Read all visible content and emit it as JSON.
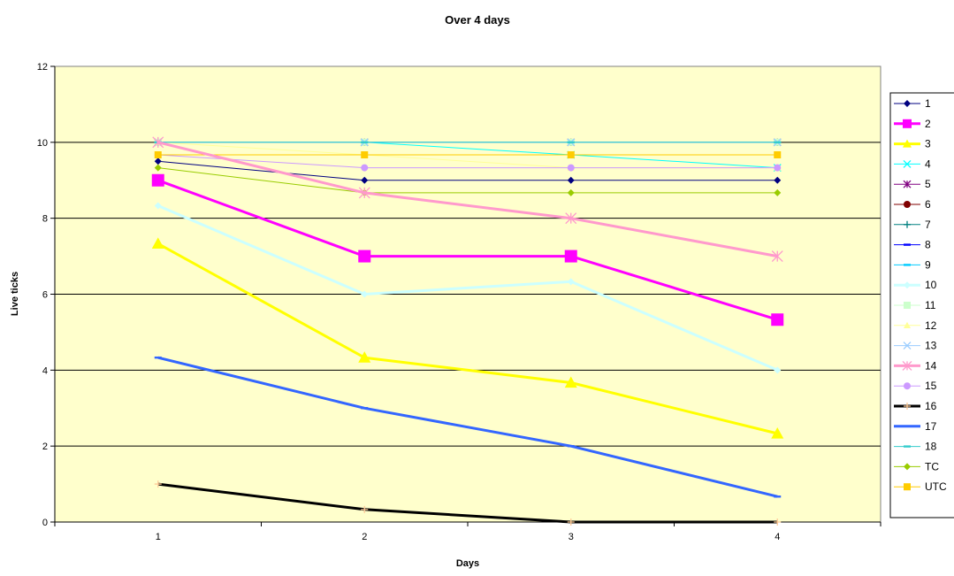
{
  "chart_data": {
    "type": "line",
    "title": "Over 4 days",
    "xlabel": "Days",
    "ylabel": "Live ticks",
    "x": [
      1,
      2,
      3,
      4
    ],
    "x_tick_labels": [
      "1",
      "2",
      "3",
      "4"
    ],
    "ylim": [
      0,
      12
    ],
    "y_ticks": [
      0,
      2,
      4,
      6,
      8,
      10,
      12
    ],
    "y_tick_labels": [
      "0",
      "2",
      "4",
      "6",
      "8",
      "10",
      "12"
    ],
    "grid": "horizontal",
    "legend_position": "right",
    "plot_background": "#FFFFCC",
    "series": [
      {
        "name": "1",
        "values": [
          9.5,
          9,
          9,
          9
        ],
        "color": "#000080",
        "marker": "diamond",
        "width": 1
      },
      {
        "name": "2",
        "values": [
          9,
          7,
          7,
          5.33
        ],
        "color": "#FF00FF",
        "marker": "square",
        "width": 3
      },
      {
        "name": "3",
        "values": [
          7.33,
          4.33,
          3.67,
          2.33
        ],
        "color": "#FFFF00",
        "marker": "triangle",
        "width": 3
      },
      {
        "name": "4",
        "values": [
          10,
          10,
          9.67,
          9.33
        ],
        "color": "#00FFFF",
        "marker": "x",
        "width": 1
      },
      {
        "name": "5",
        "values": [
          10,
          10,
          10,
          10
        ],
        "color": "#800080",
        "marker": "star",
        "width": 1
      },
      {
        "name": "6",
        "values": [
          10,
          10,
          10,
          10
        ],
        "color": "#800000",
        "marker": "circle",
        "width": 1
      },
      {
        "name": "7",
        "values": [
          10,
          10,
          10,
          10
        ],
        "color": "#008080",
        "marker": "plus",
        "width": 1
      },
      {
        "name": "8",
        "values": [
          10,
          10,
          10,
          10
        ],
        "color": "#0000FF",
        "marker": "dash",
        "width": 1
      },
      {
        "name": "9",
        "values": [
          10,
          10,
          10,
          10
        ],
        "color": "#00CCFF",
        "marker": "dash",
        "width": 1
      },
      {
        "name": "10",
        "values": [
          8.33,
          6,
          6.33,
          4
        ],
        "color": "#CCFFFF",
        "marker": "diamond",
        "width": 3
      },
      {
        "name": "11",
        "values": [
          10,
          10,
          10,
          10
        ],
        "color": "#CCFFCC",
        "marker": "square",
        "width": 1
      },
      {
        "name": "12",
        "values": [
          10,
          9.67,
          9.33,
          9.33
        ],
        "color": "#FFFF99",
        "marker": "triangle",
        "width": 1
      },
      {
        "name": "13",
        "values": [
          10,
          10,
          10,
          10
        ],
        "color": "#99CCFF",
        "marker": "x",
        "width": 1
      },
      {
        "name": "14",
        "values": [
          10,
          8.67,
          8,
          7
        ],
        "color": "#FF99CC",
        "marker": "star",
        "width": 3
      },
      {
        "name": "15",
        "values": [
          9.67,
          9.33,
          9.33,
          9.33
        ],
        "color": "#CC99FF",
        "marker": "circle",
        "width": 1
      },
      {
        "name": "16",
        "values": [
          1,
          0.33,
          0,
          0
        ],
        "color": "#000000",
        "marker": "plus",
        "markerColor": "#FFCC99",
        "width": 3
      },
      {
        "name": "17",
        "values": [
          4.33,
          3,
          2,
          0.67
        ],
        "color": "#3366FF",
        "marker": "dash",
        "width": 3
      },
      {
        "name": "18",
        "values": [
          10,
          10,
          10,
          10
        ],
        "color": "#33CCCC",
        "marker": "dash",
        "width": 1
      },
      {
        "name": "TC",
        "values": [
          9.33,
          8.67,
          8.67,
          8.67
        ],
        "color": "#99CC00",
        "marker": "diamond",
        "width": 1
      },
      {
        "name": "UTC",
        "values": [
          9.67,
          9.67,
          9.67,
          9.67
        ],
        "color": "#FFCC00",
        "marker": "square",
        "width": 1
      }
    ]
  }
}
